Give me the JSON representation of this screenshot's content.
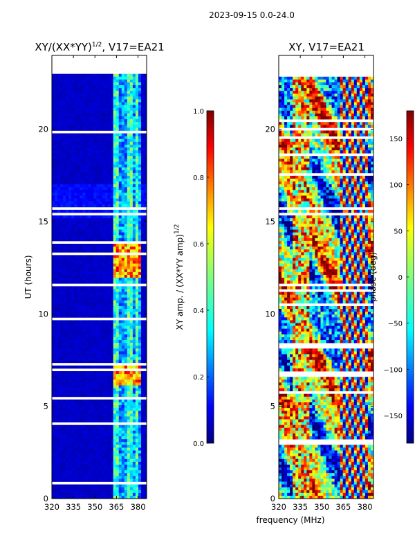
{
  "chart_data": [
    {
      "type": "heatmap",
      "suptitle": "2023-09-15 0.0-24.0",
      "title": "XY/(XX*YY)",
      "title_superscript": "1/2",
      "title_suffix": ", V17=EA21",
      "ylabel": "UT (hours)",
      "xlabel": "",
      "xlim": [
        320,
        386
      ],
      "ylim": [
        0,
        24
      ],
      "xticks": [
        "320",
        "335",
        "350",
        "365",
        "380"
      ],
      "yticks": [
        "0",
        "5",
        "10",
        "15",
        "20"
      ],
      "data_extent_hours": [
        0,
        23
      ],
      "colorbar": {
        "label": "XY amp. / (XX*YY amp)",
        "label_superscript": "1/2",
        "range": [
          0.0,
          1.0
        ],
        "ticks": [
          "0.0",
          "0.2",
          "0.4",
          "0.6",
          "0.8",
          "1.0"
        ],
        "colormap": "jet"
      }
    },
    {
      "type": "heatmap",
      "title": "XY, V17=EA21",
      "xlabel": "frequency (MHz)",
      "ylabel": "",
      "xlim": [
        320,
        386
      ],
      "ylim": [
        0,
        24
      ],
      "xticks": [
        "320",
        "335",
        "350",
        "365",
        "380"
      ],
      "yticks": [
        "0",
        "5",
        "10",
        "15",
        "20"
      ],
      "data_extent_hours": [
        0,
        23
      ],
      "colorbar": {
        "label": "phase (deg)",
        "range": [
          -180,
          180
        ],
        "ticks": [
          "−150",
          "−100",
          "−50",
          "0",
          "50",
          "100",
          "150"
        ],
        "tick_values": [
          -150,
          -100,
          -50,
          0,
          50,
          100,
          150
        ],
        "colormap": "jet"
      }
    }
  ],
  "colors": {
    "jet": [
      "#00007f",
      "#0000ff",
      "#007fff",
      "#00ffff",
      "#7fff7f",
      "#ffff00",
      "#ff7f00",
      "#ff0000",
      "#7f0000"
    ]
  }
}
